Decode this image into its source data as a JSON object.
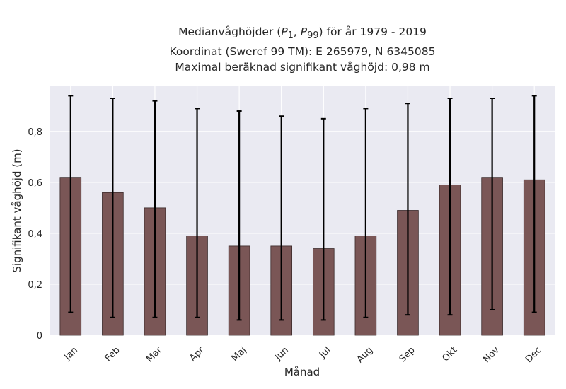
{
  "chart_data": {
    "type": "bar",
    "title_lines": [
      "Medianvåghöjder (P1, P99) för år 1979 - 2019",
      "Koordinat (Sweref 99 TM): E 265979, N 6345085",
      "Maximal beräknad signifikant våghöjd: 0,98 m"
    ],
    "title_math": {
      "p_low": "P",
      "p_low_sub": "1",
      "p_high": "P",
      "p_high_sub": "99"
    },
    "xlabel": "Månad",
    "ylabel": "Signifikant våghöjd (m)",
    "categories": [
      "Jan",
      "Feb",
      "Mar",
      "Apr",
      "Maj",
      "Jun",
      "Jul",
      "Aug",
      "Sep",
      "Okt",
      "Nov",
      "Dec"
    ],
    "values": [
      0.62,
      0.56,
      0.5,
      0.39,
      0.35,
      0.35,
      0.34,
      0.39,
      0.49,
      0.59,
      0.62,
      0.61
    ],
    "p1": [
      0.09,
      0.07,
      0.07,
      0.07,
      0.06,
      0.06,
      0.06,
      0.07,
      0.08,
      0.08,
      0.1,
      0.09
    ],
    "p99": [
      0.94,
      0.93,
      0.92,
      0.89,
      0.88,
      0.86,
      0.85,
      0.89,
      0.91,
      0.93,
      0.93,
      0.94
    ],
    "ylim": [
      0,
      0.98
    ],
    "yticks": [
      0,
      0.2,
      0.4,
      0.6,
      0.8
    ],
    "ytick_labels": [
      "0",
      "0,2",
      "0,4",
      "0,6",
      "0,8"
    ],
    "grid": true,
    "colors": {
      "bar": "#7a5656",
      "bar_edge": "#3a2a2a",
      "background": "#eaeaf2",
      "grid": "#ffffff",
      "errorbar": "#000000"
    }
  }
}
